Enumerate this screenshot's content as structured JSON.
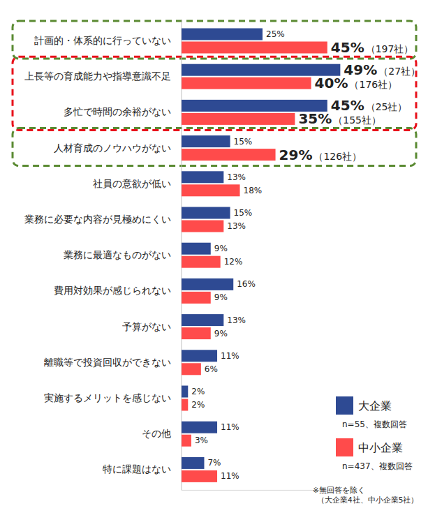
{
  "chart_data": {
    "type": "bar",
    "orientation": "horizontal",
    "data_labels": true,
    "tick_labels": false,
    "grid": false,
    "legend": "lower right",
    "categories": [
      "計画的・体系的に行っていない",
      "上長等の育成能力や指導意識不足",
      "多忙で時間の余裕がない",
      "人材育成のノウハウがない",
      "社員の意欲が低い",
      "業務に必要な内容が見極めにくい",
      "業務に最適なものがない",
      "費用対効果が感じられない",
      "予算がない",
      "離職等で投資回収ができない",
      "実施するメリットを感じない",
      "その他",
      "特に課題はない"
    ],
    "series": [
      {
        "name": "大企業",
        "color": "#2e4a93",
        "values": [
          25,
          49,
          45,
          15,
          13,
          15,
          9,
          16,
          13,
          11,
          2,
          11,
          7
        ],
        "value_labels": [
          "25%",
          "49%（27社）",
          "45%（25社）",
          "15%",
          "13%",
          "15%",
          "9%",
          "16%",
          "13%",
          "11%",
          "2%",
          "11%",
          "7%"
        ]
      },
      {
        "name": "中小企業",
        "color": "#ff4b4b",
        "values": [
          45,
          40,
          35,
          29,
          18,
          13,
          12,
          9,
          9,
          6,
          2,
          3,
          11
        ],
        "value_labels": [
          "45%（197社）",
          "40%（176社）",
          "35%（155社）",
          "29%（126社）",
          "18%",
          "13%",
          "12%",
          "9%",
          "9%",
          "6%",
          "2%",
          "3%",
          "11%"
        ]
      }
    ],
    "xlim": [
      0,
      50
    ],
    "xticks": [
      0
    ],
    "legend_notes": [
      "n=55、複数回答",
      "n=437、複数回答"
    ],
    "footnote": [
      "※無回答を除く",
      "（大企業4社、中小企業5社）"
    ]
  }
}
